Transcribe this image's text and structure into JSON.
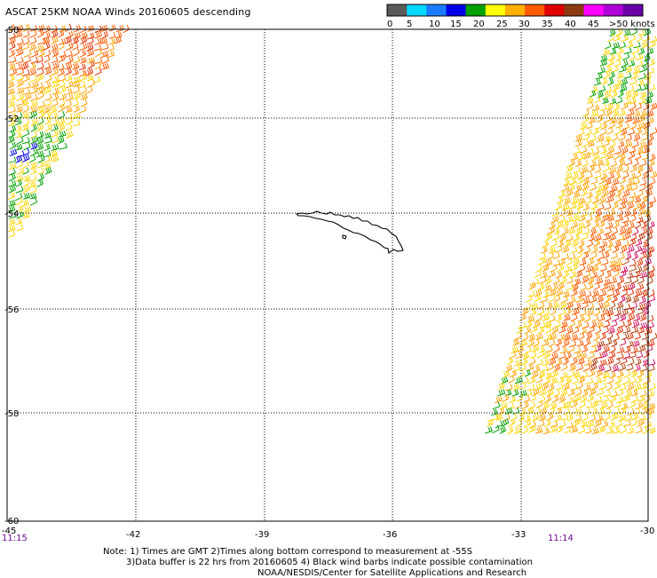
{
  "title": "ASCAT 25KM NOAA Winds 20160605 descending",
  "legend": {
    "colors": [
      "#5a5a5a",
      "#00d8ff",
      "#1c7cff",
      "#0000e6",
      "#00a000",
      "#ffff00",
      "#ffb000",
      "#ff5a00",
      "#e00000",
      "#8b3a10",
      "#ff00ff",
      "#b000d8",
      "#6a00a8"
    ],
    "labels": [
      "0",
      "5",
      "10",
      "15",
      "20",
      "25",
      "30",
      "35",
      "40",
      "45",
      ">50 knots"
    ]
  },
  "axes": {
    "lon_labels": [
      "-45",
      "-42",
      "-39",
      "-36",
      "-33",
      "-30"
    ],
    "lat_labels": [
      "-50",
      "-52",
      "-54",
      "-56",
      "-58",
      "-60"
    ]
  },
  "times": {
    "left": "11:15",
    "right": "11:14"
  },
  "notes": {
    "line1": "Note: 1) Times are GMT 2)Times along bottom correspond to measurement at -55S",
    "line2": "3)Data buffer is 22 hrs from 20160605 4) Black wind barbs indicate possible contamination",
    "line3": "NOAA/NESDIS/Center for Satellite Applications and Research"
  }
}
